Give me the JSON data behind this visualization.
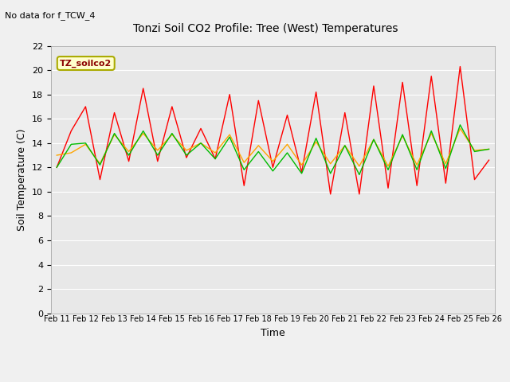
{
  "title": "Tonzi Soil CO2 Profile: Tree (West) Temperatures",
  "no_data_text": "No data for f_TCW_4",
  "xlabel": "Time",
  "ylabel": "Soil Temperature (C)",
  "legend_label": "TZ_soilco2",
  "ylim": [
    0,
    22
  ],
  "yticks": [
    0,
    2,
    4,
    6,
    8,
    10,
    12,
    14,
    16,
    18,
    20,
    22
  ],
  "x_labels": [
    "Feb 11",
    "Feb 12",
    "Feb 13",
    "Feb 14",
    "Feb 15",
    "Feb 16",
    "Feb 17",
    "Feb 18",
    "Feb 19",
    "Feb 20",
    "Feb 21",
    "Feb 22",
    "Feb 23",
    "Feb 24",
    "Feb 25",
    "Feb 26"
  ],
  "fig_bg_color": "#f0f0f0",
  "plot_bg_color": "#e8e8e8",
  "grid_color": "#ffffff",
  "colors": {
    "neg2cm": "#ff0000",
    "neg4cm": "#ffa500",
    "neg8cm": "#00bb00"
  },
  "neg2cm": [
    12.0,
    15.0,
    17.0,
    11.0,
    16.5,
    12.5,
    18.5,
    12.5,
    17.0,
    12.8,
    15.2,
    12.7,
    18.0,
    10.5,
    17.5,
    12.0,
    16.3,
    11.6,
    18.2,
    9.8,
    16.5,
    9.8,
    18.7,
    10.3,
    19.0,
    10.5,
    19.5,
    10.7,
    20.3,
    11.0,
    12.6
  ],
  "neg4cm": [
    13.0,
    13.2,
    13.9,
    12.3,
    14.7,
    13.3,
    14.8,
    13.4,
    14.7,
    13.4,
    14.0,
    13.2,
    14.7,
    12.4,
    13.8,
    12.5,
    13.9,
    12.2,
    14.1,
    12.3,
    13.8,
    12.1,
    14.3,
    12.1,
    14.6,
    12.2,
    14.8,
    12.3,
    15.2,
    13.4,
    13.5
  ],
  "neg8cm": [
    12.0,
    13.9,
    14.0,
    12.2,
    14.8,
    13.0,
    15.0,
    13.0,
    14.8,
    13.0,
    14.0,
    12.7,
    14.5,
    11.8,
    13.3,
    11.7,
    13.2,
    11.5,
    14.4,
    11.5,
    13.8,
    11.4,
    14.3,
    11.8,
    14.7,
    11.8,
    15.0,
    11.9,
    15.5,
    13.3,
    13.5
  ]
}
